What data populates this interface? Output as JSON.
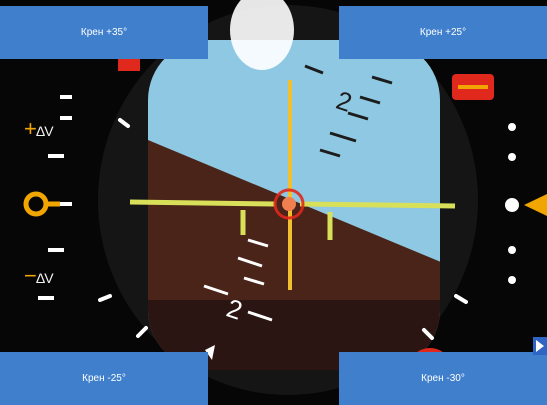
{
  "buttons": {
    "top_left": "Крен +35°",
    "top_right": "Крен +25°",
    "bottom_left": "Крен -25°",
    "bottom_right": "Крен -30°"
  },
  "speed": {
    "plus_sign": "+",
    "minus_sign": "−",
    "delta": "ΔV"
  },
  "pitch_scale": {
    "upper_mark": "2",
    "lower_mark": "2"
  },
  "colors": {
    "sky": "#8fc8e3",
    "ground": "#4a2418",
    "button": "#3f7fcb",
    "accent_yellow": "#f0c030",
    "accent_orange": "#f0a500",
    "accent_red": "#e0281c"
  }
}
